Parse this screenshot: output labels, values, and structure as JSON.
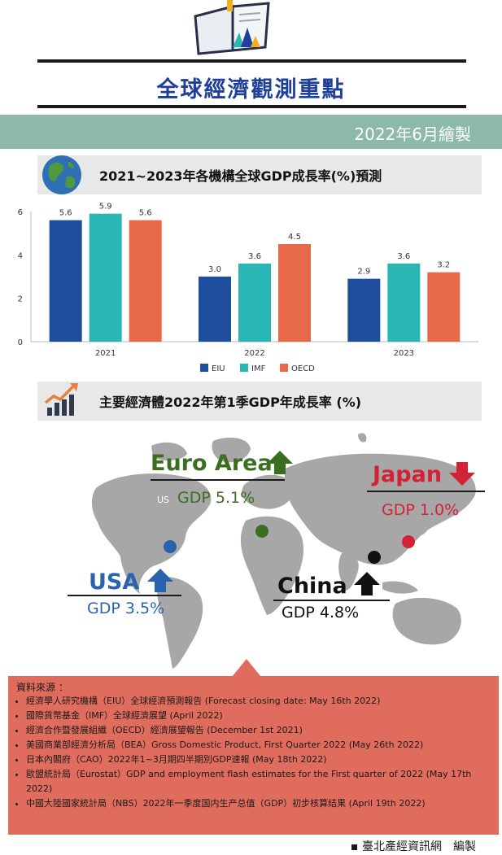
{
  "header": {
    "title": "全球經濟觀測重點",
    "date": "2022年6月繪製"
  },
  "section1": {
    "label": "2021~2023年各機構全球GDP成長率(%)預測",
    "icon": "globe-icon"
  },
  "section2": {
    "label": "主要經濟體2022年第1季GDP年成長率 (%)",
    "icon": "growth-chart-icon"
  },
  "chart_data": {
    "type": "bar",
    "title": "",
    "xlabel": "",
    "ylabel": "",
    "categories": [
      "2021",
      "2022",
      "2023"
    ],
    "ylim": [
      0,
      6
    ],
    "yticks": [
      0,
      2,
      4,
      6
    ],
    "grid": false,
    "legend_position": "bottom",
    "series": [
      {
        "name": "EIU",
        "color": "#1f4e9c",
        "values": [
          5.6,
          3.0,
          2.9
        ]
      },
      {
        "name": "IMF",
        "color": "#2bb6b6",
        "values": [
          5.9,
          3.6,
          3.6
        ]
      },
      {
        "name": "OECD",
        "color": "#e8684a",
        "values": [
          5.6,
          4.5,
          3.2
        ]
      }
    ]
  },
  "map": {
    "us_label": "US",
    "regions": [
      {
        "name": "Euro Area",
        "gdp": "GDP 5.1%",
        "color": "#3b6e1e",
        "direction": "up"
      },
      {
        "name": "Japan",
        "gdp": "GDP 1.0%",
        "color": "#d32235",
        "direction": "down"
      },
      {
        "name": "USA",
        "gdp": "GDP 3.5%",
        "color": "#2a63ad",
        "direction": "up"
      },
      {
        "name": "China",
        "gdp": "GDP 4.8%",
        "color": "#111111",
        "direction": "up"
      }
    ]
  },
  "sources": {
    "heading": "資料來源 ：",
    "items": [
      "經濟學人研究機構（EIU）全球經濟預測報告 (Forecast closing date: May 16th 2022)",
      "國際貨幣基金（IMF）全球經濟展望 (April 2022)",
      "經濟合作暨發展組織（OECD）經濟展望報告 (December 1st 2021)",
      "美國商業部經濟分析局（BEA）Gross Domestic Product, First Quarter 2022 (May 26th 2022)",
      "日本內閣府（CAO）2022年1~3月期四半期別GDP速報 (May 18th 2022)",
      "歐盟統計局（Eurostat）GDP and employment flash estimates for the First quarter of 2022 (May 17th 2022)",
      "中國大陸國家統計局（NBS）2022年一季度国内生产总值（GDP）初步核算结果 (April 19th 2022)"
    ]
  },
  "footer": {
    "credit": "臺北產經資訊網　編製"
  }
}
